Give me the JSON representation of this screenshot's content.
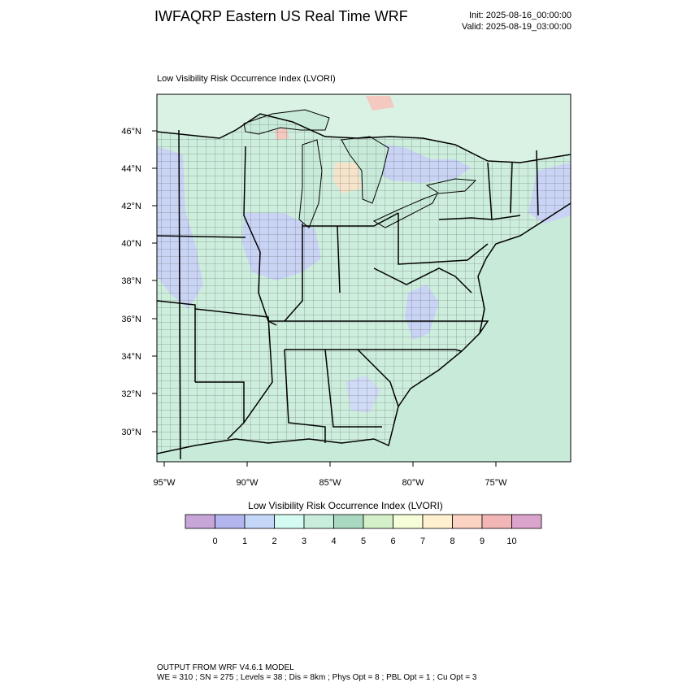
{
  "header": {
    "title": "IWFAQRP Eastern US Real Time WRF",
    "init": "Init: 2025-08-16_00:00:00",
    "valid": "Valid: 2025-08-19_03:00:00"
  },
  "plot": {
    "subtitle": "Low Visibility Risk Occurrence Index   (LVORI)",
    "lat_labels": [
      "46°N",
      "44°N",
      "42°N",
      "40°N",
      "38°N",
      "36°N",
      "34°N",
      "32°N",
      "30°N"
    ],
    "lon_labels": [
      "95°W",
      "90°W",
      "85°W",
      "80°W",
      "75°W"
    ],
    "colors": {
      "land_base": "#cdeedd",
      "ocean": "#c8ead8",
      "low_index_blue": "#c9d4f5",
      "high_index_pink": "#f4c9c0",
      "boundary": "#000000"
    }
  },
  "colorbar": {
    "title": "Low Visibility Risk Occurrence Index  (LVORI)",
    "labels": [
      "0",
      "1",
      "2",
      "3",
      "4",
      "5",
      "6",
      "7",
      "8",
      "9",
      "10"
    ],
    "colors": [
      "#c8a5d9",
      "#b2b5ee",
      "#c5d7f8",
      "#d4fbf1",
      "#c8eddc",
      "#a9d9c0",
      "#d4f0c8",
      "#f5fdd9",
      "#fff0d0",
      "#fcd2c3",
      "#f2b6b6",
      "#dba4cd"
    ]
  },
  "footer": {
    "line1": "OUTPUT FROM WRF V4.6.1 MODEL",
    "line2": "WE = 310 ; SN = 275 ; Levels = 38 ; Dis = 8km ; Phys Opt = 8 ; PBL Opt = 1 ; Cu Opt = 3"
  }
}
